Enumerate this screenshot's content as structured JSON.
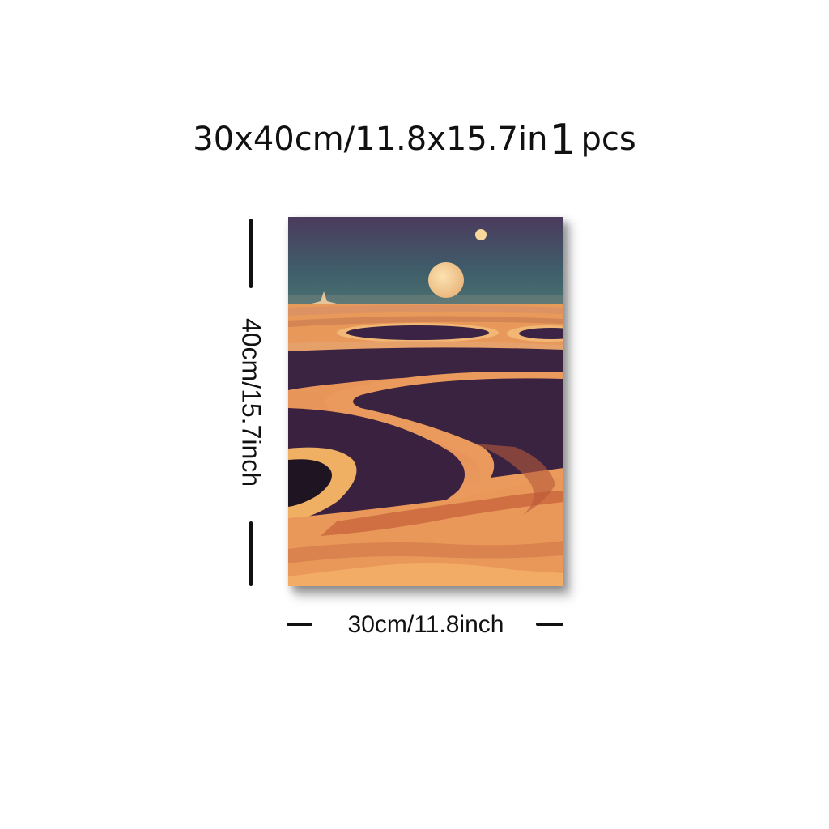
{
  "header": {
    "size": "30x40cm/11.8x15.7in",
    "quantity_number": "1",
    "quantity_unit": "pcs"
  },
  "dimensions": {
    "height_label": "40cm/15.7inch",
    "width_label": "30cm/11.8inch"
  },
  "colors": {
    "sky_top": "#4a3a5c",
    "sky_bottom": "#3e6b6e",
    "sand_light": "#f2b46a",
    "sand_mid": "#e08a4c",
    "sand_dark": "#c4603a",
    "crater_dark": "#3a2140",
    "moon": "#f5c98a"
  }
}
